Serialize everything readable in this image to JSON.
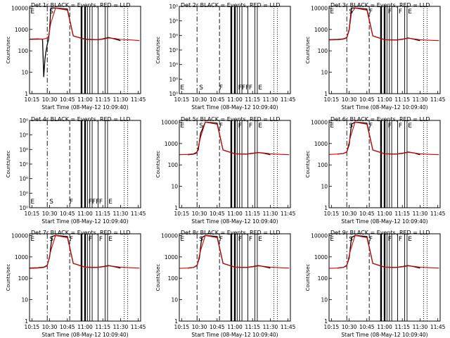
{
  "page": {
    "background": "#ffffff",
    "axis_color": "#000000",
    "event_color": "#000000",
    "lld_color": "#e00000"
  },
  "chart_data": [
    {
      "type": "line",
      "title": "Det 1r BLACK = Events, RED = LLD",
      "empty": false,
      "xlabel": "Start Time (08-May-12 10:09:40)",
      "ylabel": "Counts/sec",
      "xlim": [
        "10:13",
        "11:47"
      ],
      "yscale": "log",
      "ylim": [
        1,
        12000
      ],
      "xticks": [
        "10:15",
        "10:30",
        "10:45",
        "11:00",
        "11:15",
        "11:30",
        "11:45"
      ],
      "yticks": [
        "1",
        "10",
        "100",
        "1000",
        "10000"
      ],
      "letters": [
        "E",
        "S"
      ],
      "series": [
        {
          "name": "Events",
          "color": "#000000",
          "x": [
            "10:13",
            "10:20",
            "10:24",
            "10:25",
            "10:26",
            "10:27",
            "10:28",
            "10:29",
            "10:30",
            "10:31",
            "10:35",
            "10:45",
            "10:50",
            "11:00",
            "11:10",
            "11:15",
            "11:20",
            "11:25",
            "11:30"
          ],
          "y": [
            350,
            360,
            350,
            6,
            40,
            100,
            200,
            320,
            1000,
            10000,
            10000,
            9000,
            500,
            350,
            330,
            360,
            420,
            360,
            300
          ]
        },
        {
          "name": "LLD",
          "color": "#e00000",
          "x": [
            "10:13",
            "10:20",
            "10:25",
            "10:27",
            "10:29",
            "10:31",
            "10:35",
            "10:45",
            "10:50",
            "11:00",
            "11:10",
            "11:15",
            "11:20",
            "11:25",
            "11:30",
            "11:40",
            "11:46"
          ],
          "y": [
            340,
            350,
            360,
            380,
            450,
            2000,
            10000,
            8000,
            500,
            340,
            330,
            350,
            400,
            380,
            340,
            320,
            300
          ]
        }
      ]
    },
    {
      "type": "line",
      "title": "Det 2r BLACK = Events, RED = LLD",
      "empty": true,
      "xlabel": "Start Time (08-May-12 10:09:40)",
      "ylabel": "Counts/sec",
      "xlim": [
        "10:13",
        "11:47"
      ],
      "yscale": "log",
      "ylim": [
        1,
        10
      ],
      "xticks": [
        "10:15",
        "10:30",
        "10:45",
        "11:00",
        "11:15",
        "11:30",
        "11:45"
      ],
      "yticks": [
        "10⁰",
        "10⁰",
        "10⁰",
        "10⁰",
        "10⁰",
        "10⁰",
        "10⁰"
      ],
      "letters": [
        "E",
        "S",
        "F",
        "FFF",
        "F",
        "E"
      ],
      "series": []
    },
    {
      "type": "line",
      "title": "Det 3r BLACK = Events, RED = LLD",
      "empty": false,
      "xlabel": "Start Time (08-May-12 10:09:40)",
      "ylabel": "Counts/sec",
      "xlim": [
        "10:13",
        "11:47"
      ],
      "yscale": "log",
      "ylim": [
        1,
        12000
      ],
      "xticks": [
        "10:15",
        "10:30",
        "10:45",
        "11:00",
        "11:15",
        "11:30",
        "11:45"
      ],
      "yticks": [
        "1",
        "10",
        "100",
        "1000",
        "10000"
      ],
      "letters": [
        "E",
        "S",
        "F",
        "F",
        "F",
        "E"
      ],
      "series": [
        {
          "name": "Events",
          "color": "#000000",
          "x": [
            "10:13",
            "10:20",
            "10:25",
            "10:28",
            "10:30",
            "10:32",
            "10:35",
            "10:45",
            "10:50",
            "11:00",
            "11:10",
            "11:15",
            "11:20",
            "11:25",
            "11:30"
          ],
          "y": [
            330,
            340,
            360,
            420,
            1000,
            10000,
            10000,
            9000,
            500,
            330,
            320,
            350,
            400,
            350,
            300
          ]
        },
        {
          "name": "LLD",
          "color": "#e00000",
          "x": [
            "10:13",
            "10:20",
            "10:25",
            "10:28",
            "10:30",
            "10:32",
            "10:35",
            "10:45",
            "10:50",
            "11:00",
            "11:10",
            "11:15",
            "11:20",
            "11:25",
            "11:30",
            "11:40",
            "11:46"
          ],
          "y": [
            320,
            330,
            350,
            400,
            900,
            6000,
            10000,
            8000,
            500,
            330,
            320,
            340,
            390,
            360,
            330,
            310,
            300
          ]
        }
      ]
    },
    {
      "type": "line",
      "title": "Det 4r BLACK = Events, RED = LLD",
      "empty": true,
      "xlabel": "Start Time (08-May-12 10:09:40)",
      "ylabel": "Counts/sec",
      "xlim": [
        "10:13",
        "11:47"
      ],
      "yscale": "log",
      "ylim": [
        1,
        10
      ],
      "xticks": [
        "10:15",
        "10:30",
        "10:45",
        "11:00",
        "11:15",
        "11:30",
        "11:45"
      ],
      "yticks": [
        "10⁰",
        "10⁰",
        "10⁰",
        "10⁰",
        "10⁰",
        "10⁰",
        "10⁰"
      ],
      "letters": [
        "E",
        "S",
        "F",
        "FFF",
        "F",
        "E"
      ],
      "series": []
    },
    {
      "type": "line",
      "title": "Det 5r BLACK = Events, RED = LLD",
      "empty": false,
      "xlabel": "Start Time (08-May-12 10:09:40)",
      "ylabel": "Counts/sec",
      "xlim": [
        "10:13",
        "11:47"
      ],
      "yscale": "log",
      "ylim": [
        1,
        12000
      ],
      "xticks": [
        "10:15",
        "10:30",
        "10:45",
        "11:00",
        "11:15",
        "11:30",
        "11:45"
      ],
      "yticks": [
        "1",
        "10",
        "100",
        "1000",
        "10000"
      ],
      "letters": [
        "E",
        "S",
        "F",
        "F",
        "F",
        "E"
      ],
      "series": [
        {
          "name": "Events",
          "color": "#000000",
          "x": [
            "10:20",
            "10:25",
            "10:27",
            "10:29",
            "10:31",
            "10:35",
            "10:45",
            "10:50",
            "11:00",
            "11:10",
            "11:15",
            "11:20",
            "11:25",
            "11:30"
          ],
          "y": [
            300,
            320,
            350,
            500,
            3000,
            10000,
            9000,
            500,
            330,
            320,
            350,
            380,
            350,
            300
          ]
        },
        {
          "name": "LLD",
          "color": "#e00000",
          "x": [
            "10:13",
            "10:20",
            "10:25",
            "10:28",
            "10:31",
            "10:35",
            "10:45",
            "10:50",
            "11:00",
            "11:10",
            "11:15",
            "11:20",
            "11:25",
            "11:30",
            "11:40",
            "11:46"
          ],
          "y": [
            300,
            310,
            330,
            400,
            2000,
            10000,
            8000,
            500,
            330,
            320,
            340,
            380,
            360,
            330,
            310,
            300
          ]
        }
      ]
    },
    {
      "type": "line",
      "title": "Det 6r BLACK = Events, RED = LLD",
      "empty": false,
      "xlabel": "Start Time (08-May-12 10:09:40)",
      "ylabel": "Counts/sec",
      "xlim": [
        "10:13",
        "11:47"
      ],
      "yscale": "log",
      "ylim": [
        1,
        12000
      ],
      "xticks": [
        "10:15",
        "10:30",
        "10:45",
        "11:00",
        "11:15",
        "11:30",
        "11:45"
      ],
      "yticks": [
        "1",
        "10",
        "100",
        "1000",
        "10000"
      ],
      "letters": [
        "E",
        "S",
        "F",
        "F",
        "F",
        "E"
      ],
      "series": [
        {
          "name": "Events",
          "color": "#000000",
          "x": [
            "10:20",
            "10:25",
            "10:28",
            "10:30",
            "10:32",
            "10:35",
            "10:45",
            "10:50",
            "11:00",
            "11:10",
            "11:15",
            "11:20",
            "11:25",
            "11:30"
          ],
          "y": [
            320,
            340,
            400,
            900,
            8000,
            10000,
            9000,
            500,
            330,
            320,
            350,
            400,
            360,
            300
          ]
        },
        {
          "name": "LLD",
          "color": "#e00000",
          "x": [
            "10:13",
            "10:20",
            "10:25",
            "10:28",
            "10:31",
            "10:35",
            "10:45",
            "10:50",
            "11:00",
            "11:10",
            "11:15",
            "11:20",
            "11:25",
            "11:30",
            "11:40",
            "11:46"
          ],
          "y": [
            310,
            320,
            340,
            400,
            2000,
            10000,
            8000,
            500,
            330,
            320,
            340,
            390,
            360,
            330,
            310,
            300
          ]
        }
      ]
    },
    {
      "type": "line",
      "title": "Det 7r BLACK = Events, RED = LLD",
      "empty": false,
      "xlabel": "Start Time (08-May-12 10:09:40)",
      "ylabel": "Counts/sec",
      "xlim": [
        "10:13",
        "11:47"
      ],
      "yscale": "log",
      "ylim": [
        1,
        12000
      ],
      "xticks": [
        "10:15",
        "10:30",
        "10:45",
        "11:00",
        "11:15",
        "11:30",
        "11:45"
      ],
      "yticks": [
        "1",
        "10",
        "100",
        "1000",
        "10000"
      ],
      "letters": [
        "E",
        "S",
        "F",
        "F",
        "F",
        "E"
      ],
      "series": [
        {
          "name": "Events",
          "color": "#000000",
          "x": [
            "10:13",
            "10:20",
            "10:25",
            "10:28",
            "10:30",
            "10:32",
            "10:35",
            "10:45",
            "10:50",
            "11:00",
            "11:10",
            "11:15",
            "11:20",
            "11:25",
            "11:30"
          ],
          "y": [
            300,
            310,
            330,
            400,
            1000,
            9000,
            10000,
            9000,
            500,
            330,
            320,
            350,
            390,
            350,
            300
          ]
        },
        {
          "name": "LLD",
          "color": "#e00000",
          "x": [
            "10:13",
            "10:20",
            "10:25",
            "10:28",
            "10:31",
            "10:35",
            "10:45",
            "10:50",
            "11:00",
            "11:10",
            "11:15",
            "11:20",
            "11:25",
            "11:30",
            "11:40",
            "11:46"
          ],
          "y": [
            290,
            300,
            320,
            380,
            2000,
            10000,
            8000,
            500,
            330,
            320,
            340,
            380,
            360,
            330,
            310,
            300
          ]
        }
      ]
    },
    {
      "type": "line",
      "title": "Det 8r BLACK = Events, RED = LLD",
      "empty": false,
      "xlabel": "Start Time (08-May-12 10:09:40)",
      "ylabel": "Counts/sec",
      "xlim": [
        "10:13",
        "11:47"
      ],
      "yscale": "log",
      "ylim": [
        1,
        12000
      ],
      "xticks": [
        "10:15",
        "10:30",
        "10:45",
        "11:00",
        "11:15",
        "11:30",
        "11:45"
      ],
      "yticks": [
        "1",
        "10",
        "100",
        "1000",
        "10000"
      ],
      "letters": [
        "E",
        "S",
        "F",
        "F",
        "F",
        "E"
      ],
      "series": [
        {
          "name": "Events",
          "color": "#000000",
          "x": [
            "10:20",
            "10:25",
            "10:28",
            "10:30",
            "10:32",
            "10:35",
            "10:45",
            "10:50",
            "11:00",
            "11:10",
            "11:15",
            "11:20",
            "11:25",
            "11:30"
          ],
          "y": [
            300,
            320,
            400,
            900,
            8000,
            10000,
            9000,
            500,
            330,
            320,
            350,
            390,
            350,
            300
          ]
        },
        {
          "name": "LLD",
          "color": "#e00000",
          "x": [
            "10:13",
            "10:20",
            "10:25",
            "10:28",
            "10:31",
            "10:35",
            "10:45",
            "10:50",
            "11:00",
            "11:10",
            "11:15",
            "11:20",
            "11:25",
            "11:30",
            "11:40",
            "11:46"
          ],
          "y": [
            290,
            300,
            320,
            380,
            2000,
            10000,
            8000,
            500,
            330,
            320,
            340,
            380,
            360,
            330,
            310,
            300
          ]
        }
      ]
    },
    {
      "type": "line",
      "title": "Det 9r BLACK = Events, RED = LLD",
      "empty": false,
      "xlabel": "Start Time (08-May-12 10:09:40)",
      "ylabel": "Counts/sec",
      "xlim": [
        "10:13",
        "11:47"
      ],
      "yscale": "log",
      "ylim": [
        1,
        12000
      ],
      "xticks": [
        "10:15",
        "10:30",
        "10:45",
        "11:00",
        "11:15",
        "11:30",
        "11:45"
      ],
      "yticks": [
        "1",
        "10",
        "100",
        "1000",
        "10000"
      ],
      "letters": [
        "E",
        "S",
        "F",
        "F",
        "F",
        "E"
      ],
      "series": [
        {
          "name": "Events",
          "color": "#000000",
          "x": [
            "10:20",
            "10:25",
            "10:28",
            "10:30",
            "10:32",
            "10:35",
            "10:45",
            "10:50",
            "11:00",
            "11:10",
            "11:15",
            "11:20",
            "11:25",
            "11:30"
          ],
          "y": [
            300,
            320,
            400,
            900,
            8000,
            10000,
            9000,
            500,
            330,
            320,
            350,
            390,
            350,
            300
          ]
        },
        {
          "name": "LLD",
          "color": "#e00000",
          "x": [
            "10:13",
            "10:20",
            "10:25",
            "10:28",
            "10:31",
            "10:35",
            "10:45",
            "10:50",
            "11:00",
            "11:10",
            "11:15",
            "11:20",
            "11:25",
            "11:30",
            "11:40",
            "11:46"
          ],
          "y": [
            290,
            300,
            320,
            380,
            2000,
            10000,
            8000,
            500,
            330,
            320,
            340,
            380,
            360,
            330,
            310,
            300
          ]
        }
      ]
    }
  ],
  "markers": [
    {
      "time": "10:28",
      "style": "dashdot"
    },
    {
      "time": "10:47",
      "style": "dashed"
    },
    {
      "time": "10:57",
      "style": "thick"
    },
    {
      "time": "11:00",
      "style": "thick"
    },
    {
      "time": "11:02",
      "style": "solid"
    },
    {
      "time": "11:04",
      "style": "solid"
    },
    {
      "time": "11:06",
      "style": "solid"
    },
    {
      "time": "11:11",
      "style": "solid"
    },
    {
      "time": "11:17",
      "style": "solid"
    },
    {
      "time": "11:19",
      "style": "solid"
    },
    {
      "time": "11:33",
      "style": "dotted"
    },
    {
      "time": "11:36",
      "style": "dotted"
    }
  ]
}
